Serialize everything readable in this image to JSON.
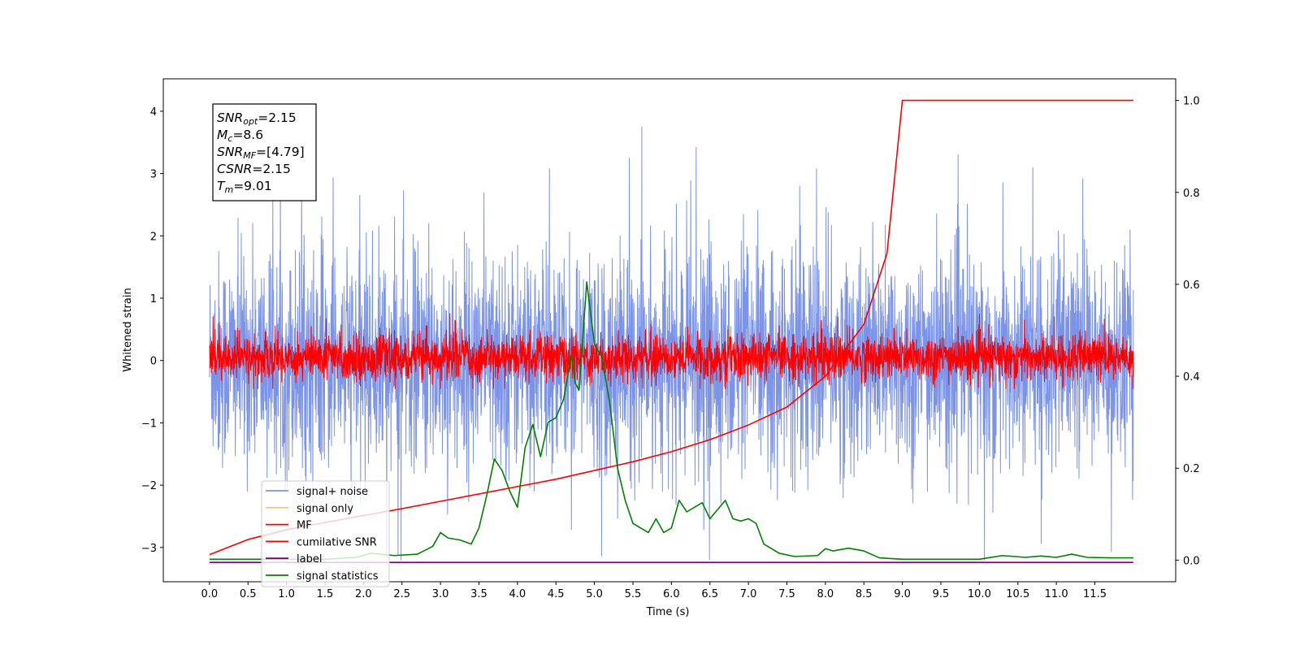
{
  "chart_data": {
    "type": "line",
    "xlabel": "Time (s)",
    "ylabel": "Whitened strain",
    "xlim": [
      -0.6,
      12.55
    ],
    "ylim_left": [
      -3.55,
      4.52
    ],
    "ylim_right": [
      -0.047,
      1.047
    ],
    "x_ticks": [
      "0.0",
      "0.5",
      "1.0",
      "1.5",
      "2.0",
      "2.5",
      "3.0",
      "3.5",
      "4.0",
      "4.5",
      "5.0",
      "5.5",
      "6.0",
      "6.5",
      "7.0",
      "7.5",
      "8.0",
      "8.5",
      "9.0",
      "9.5",
      "10.0",
      "10.5",
      "11.0",
      "11.5"
    ],
    "y_ticks_left": [
      "−3",
      "−2",
      "−1",
      "0",
      "1",
      "2",
      "3",
      "4"
    ],
    "y_ticks_right": [
      "0.0",
      "0.2",
      "0.4",
      "0.6",
      "0.8",
      "1.0"
    ],
    "grid": false,
    "legend_placement": "lower-left",
    "annotation": [
      {
        "base": "SNR",
        "sub": "opt",
        "value": "=2.15"
      },
      {
        "base": "M",
        "sub": "c",
        "value": "=8.6"
      },
      {
        "base": "SNR",
        "sub": "MF",
        "value": "=[4.79]"
      },
      {
        "base": "CSNR",
        "sub": "",
        "value": "=2.15"
      },
      {
        "base": "T",
        "sub": "m",
        "value": "=9.01"
      }
    ],
    "series": [
      {
        "name": "signal+ noise",
        "color": "#7b93e8",
        "axis": "left",
        "kind": "noise",
        "x_range": [
          0,
          12
        ],
        "y_core_range": [
          -1.9,
          1.9
        ],
        "y_peak": 4.16,
        "y_min": -3.2
      },
      {
        "name": "signal only",
        "color": "#f5c77e",
        "axis": "left",
        "kind": "hidden",
        "x_range": [
          0,
          12
        ]
      },
      {
        "name": "MF",
        "color": "#ff0000",
        "axis": "left",
        "kind": "noise",
        "x_range": [
          0,
          12
        ],
        "y_core_range": [
          -0.35,
          0.45
        ],
        "y_peak": 0.85,
        "y_min": -0.45
      },
      {
        "name": "cumilative SNR",
        "color": "#ff0000",
        "axis": "right",
        "kind": "line",
        "points": [
          [
            0.0,
            0.012
          ],
          [
            0.5,
            0.045
          ],
          [
            1.0,
            0.066
          ],
          [
            1.5,
            0.082
          ],
          [
            2.0,
            0.097
          ],
          [
            2.5,
            0.112
          ],
          [
            3.0,
            0.128
          ],
          [
            3.5,
            0.144
          ],
          [
            4.0,
            0.16
          ],
          [
            4.5,
            0.176
          ],
          [
            5.0,
            0.195
          ],
          [
            5.5,
            0.214
          ],
          [
            6.0,
            0.236
          ],
          [
            6.5,
            0.262
          ],
          [
            7.0,
            0.294
          ],
          [
            7.5,
            0.333
          ],
          [
            8.0,
            0.4
          ],
          [
            8.5,
            0.513
          ],
          [
            8.8,
            0.667
          ],
          [
            9.0,
            1.0
          ],
          [
            12.0,
            1.0
          ]
        ]
      },
      {
        "name": "label",
        "color": "#7b007b",
        "axis": "left",
        "kind": "line",
        "points": [
          [
            0.0,
            -3.24
          ],
          [
            12.0,
            -3.24
          ]
        ]
      },
      {
        "name": "signal statistics",
        "color": "#008000",
        "axis": "right",
        "kind": "line",
        "points": [
          [
            0.0,
            0.002
          ],
          [
            0.5,
            0.002
          ],
          [
            1.0,
            0.002
          ],
          [
            1.5,
            0.002
          ],
          [
            1.9,
            0.006
          ],
          [
            2.1,
            0.015
          ],
          [
            2.4,
            0.01
          ],
          [
            2.7,
            0.013
          ],
          [
            2.9,
            0.03
          ],
          [
            3.0,
            0.06
          ],
          [
            3.1,
            0.048
          ],
          [
            3.25,
            0.044
          ],
          [
            3.4,
            0.035
          ],
          [
            3.5,
            0.07
          ],
          [
            3.6,
            0.14
          ],
          [
            3.7,
            0.22
          ],
          [
            3.8,
            0.195
          ],
          [
            3.9,
            0.15
          ],
          [
            4.0,
            0.115
          ],
          [
            4.1,
            0.245
          ],
          [
            4.2,
            0.295
          ],
          [
            4.3,
            0.225
          ],
          [
            4.4,
            0.3
          ],
          [
            4.5,
            0.31
          ],
          [
            4.6,
            0.35
          ],
          [
            4.7,
            0.445
          ],
          [
            4.75,
            0.385
          ],
          [
            4.8,
            0.37
          ],
          [
            4.9,
            0.605
          ],
          [
            5.0,
            0.47
          ],
          [
            5.1,
            0.44
          ],
          [
            5.2,
            0.34
          ],
          [
            5.3,
            0.2
          ],
          [
            5.4,
            0.13
          ],
          [
            5.5,
            0.08
          ],
          [
            5.6,
            0.07
          ],
          [
            5.7,
            0.06
          ],
          [
            5.8,
            0.09
          ],
          [
            5.9,
            0.06
          ],
          [
            6.0,
            0.07
          ],
          [
            6.1,
            0.13
          ],
          [
            6.2,
            0.105
          ],
          [
            6.3,
            0.115
          ],
          [
            6.4,
            0.125
          ],
          [
            6.5,
            0.09
          ],
          [
            6.6,
            0.11
          ],
          [
            6.7,
            0.13
          ],
          [
            6.8,
            0.09
          ],
          [
            6.9,
            0.085
          ],
          [
            7.0,
            0.09
          ],
          [
            7.1,
            0.08
          ],
          [
            7.2,
            0.035
          ],
          [
            7.4,
            0.015
          ],
          [
            7.6,
            0.008
          ],
          [
            7.9,
            0.01
          ],
          [
            8.0,
            0.025
          ],
          [
            8.1,
            0.02
          ],
          [
            8.3,
            0.026
          ],
          [
            8.5,
            0.02
          ],
          [
            8.7,
            0.005
          ],
          [
            9.0,
            0.002
          ],
          [
            10.0,
            0.002
          ],
          [
            10.3,
            0.01
          ],
          [
            10.6,
            0.006
          ],
          [
            10.8,
            0.009
          ],
          [
            11.0,
            0.006
          ],
          [
            11.2,
            0.013
          ],
          [
            11.4,
            0.006
          ],
          [
            11.7,
            0.005
          ],
          [
            12.0,
            0.005
          ]
        ]
      }
    ]
  }
}
